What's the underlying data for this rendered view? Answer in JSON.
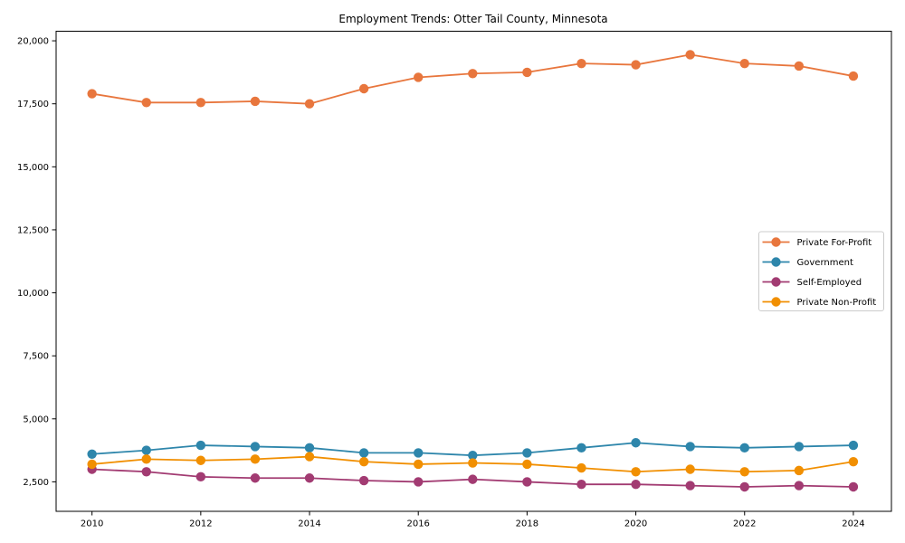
{
  "chart_data": {
    "type": "line",
    "title": "Employment Trends: Otter Tail County, Minnesota",
    "x": [
      2010,
      2011,
      2012,
      2013,
      2014,
      2015,
      2016,
      2017,
      2018,
      2019,
      2020,
      2021,
      2022,
      2023,
      2024
    ],
    "series": [
      {
        "name": "Private For-Profit",
        "color": "#E8763D",
        "values": [
          17900,
          17550,
          17550,
          17600,
          17500,
          18100,
          18550,
          18700,
          18750,
          19100,
          19050,
          19450,
          19100,
          19000,
          18600
        ]
      },
      {
        "name": "Government",
        "color": "#2E86AB",
        "values": [
          3600,
          3750,
          3950,
          3900,
          3850,
          3650,
          3650,
          3550,
          3650,
          3850,
          4050,
          3900,
          3850,
          3900,
          3950
        ]
      },
      {
        "name": "Self-Employed",
        "color": "#A23B72",
        "values": [
          3000,
          2900,
          2700,
          2650,
          2650,
          2550,
          2500,
          2600,
          2500,
          2400,
          2400,
          2350,
          2300,
          2350,
          2300
        ]
      },
      {
        "name": "Private Non-Profit",
        "color": "#F18F01",
        "values": [
          3200,
          3400,
          3350,
          3400,
          3500,
          3300,
          3200,
          3250,
          3200,
          3050,
          2900,
          3000,
          2900,
          2950,
          3300
        ]
      }
    ],
    "xticks": {
      "values": [
        2010,
        2012,
        2014,
        2016,
        2018,
        2020,
        2022,
        2024
      ],
      "labels": [
        "2010",
        "2012",
        "2014",
        "2016",
        "2018",
        "2020",
        "2022",
        "2024"
      ]
    },
    "yticks": {
      "values": [
        2500,
        5000,
        7500,
        10000,
        12500,
        15000,
        17500,
        20000
      ],
      "labels": [
        "2,500",
        "5,000",
        "7,500",
        "10,000",
        "12,500",
        "15,000",
        "17,500",
        "20,000"
      ]
    },
    "xlim": [
      2009.34,
      2024.7
    ],
    "ylim": [
      1330,
      20380
    ],
    "grid": false,
    "legend_position": "center-right",
    "axis_color": "#000000",
    "text_color": "#000000",
    "background": "#ffffff"
  }
}
